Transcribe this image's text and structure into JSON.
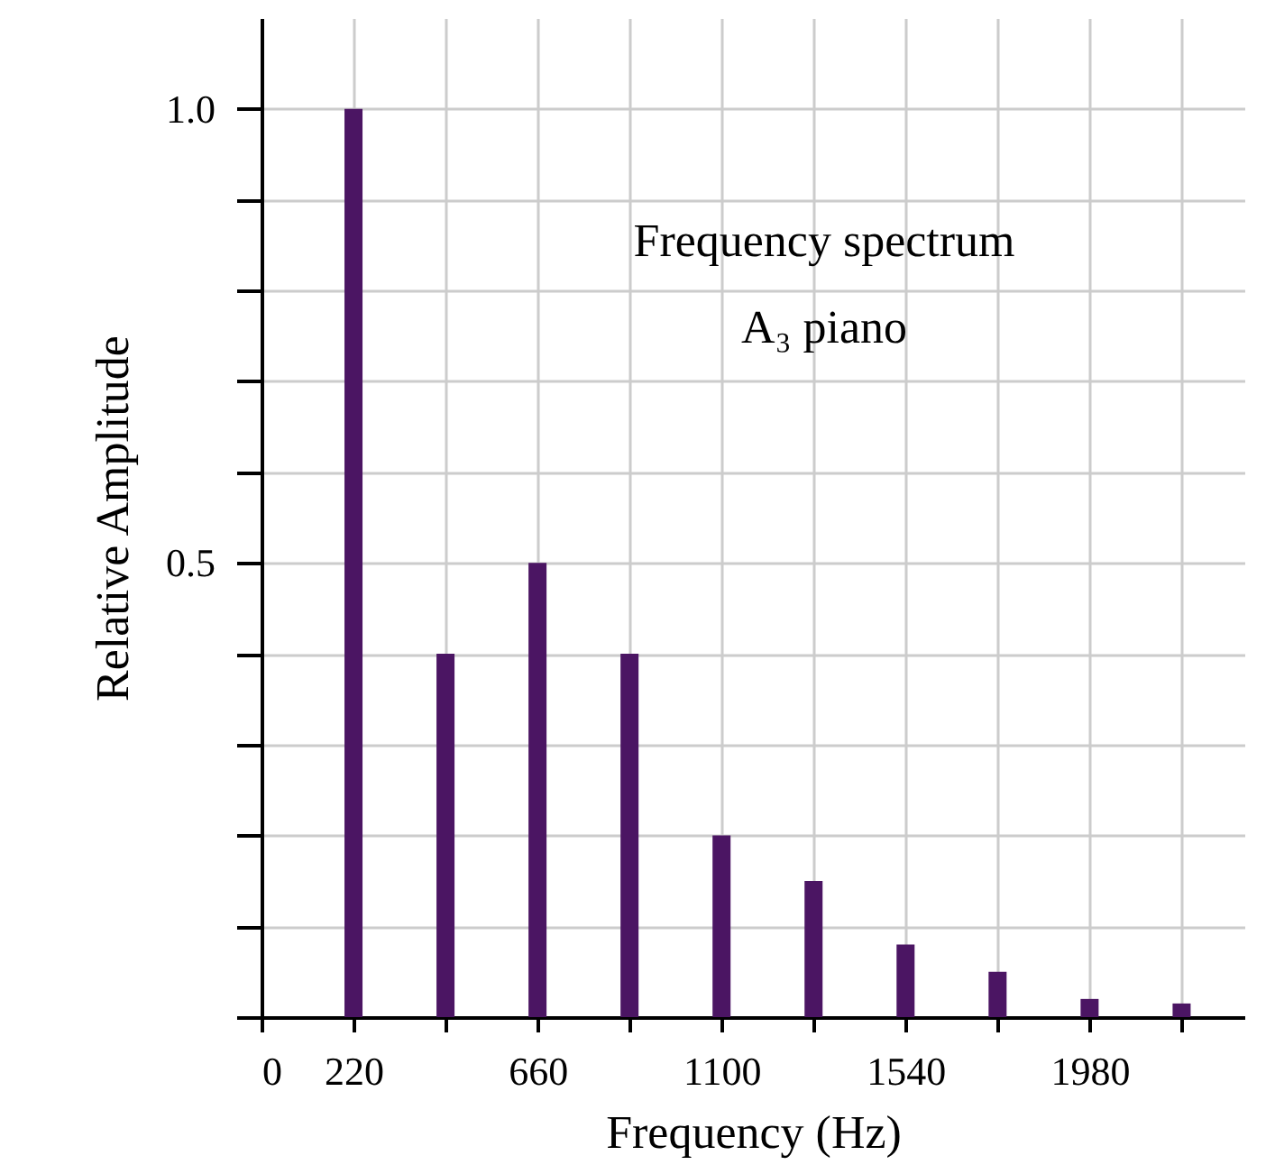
{
  "chart_data": {
    "type": "bar",
    "xlabel": "Frequency  (Hz)",
    "ylabel": "Relative Amplitude",
    "x": [
      220,
      440,
      660,
      880,
      1100,
      1320,
      1540,
      1760,
      1980,
      2200
    ],
    "values": [
      1.0,
      0.4,
      0.5,
      0.4,
      0.2,
      0.15,
      0.08,
      0.05,
      0.02,
      0.015
    ],
    "color": "#4b1563",
    "xlim": [
      0,
      2350
    ],
    "xticks": [
      {
        "value": 0,
        "label": "0"
      },
      220,
      {
        "value": 440,
        "label": null
      },
      660,
      {
        "value": 880,
        "label": null
      },
      1100,
      {
        "value": 1320,
        "label": null
      },
      1540,
      {
        "value": 1760,
        "label": null
      },
      1980,
      {
        "value": 2200,
        "label": null
      }
    ],
    "ylim": [
      0,
      1.1
    ],
    "yticks": [
      {
        "value": 0,
        "label": null
      },
      {
        "value": 0.1,
        "label": null
      },
      {
        "value": 0.2,
        "label": null
      },
      {
        "value": 0.3,
        "label": null
      },
      {
        "value": 0.4,
        "label": null
      },
      0.5,
      {
        "value": 0.6,
        "label": null
      },
      {
        "value": 0.7,
        "label": null
      },
      {
        "value": 0.8,
        "label": null
      },
      {
        "value": 0.9,
        "label": null
      },
      {
        "value": 1.0,
        "label": "1.0"
      }
    ],
    "grid": true,
    "annotations": [
      "Frequency spectrum",
      "A₃ piano"
    ]
  }
}
